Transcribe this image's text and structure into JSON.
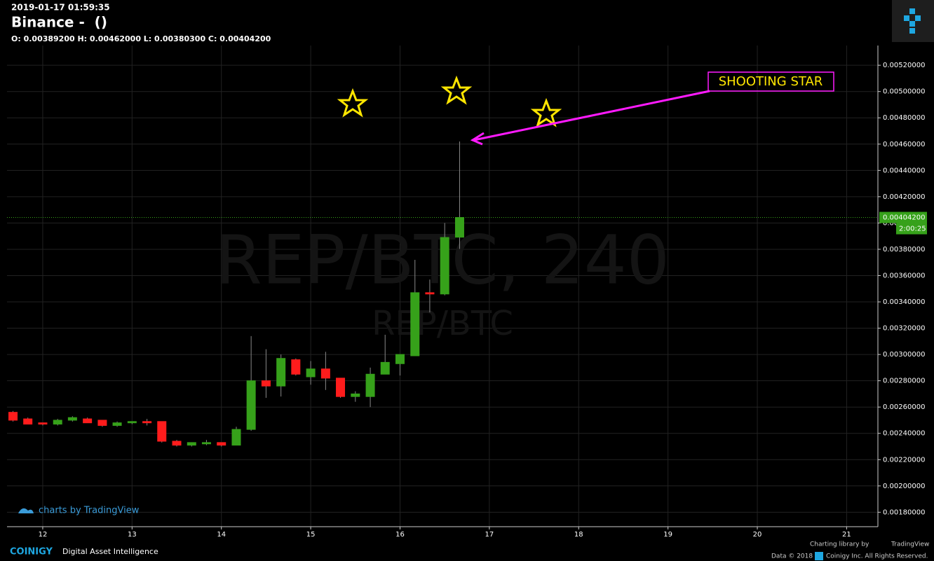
{
  "chart_data": {
    "type": "candlestick",
    "timestamp": "2019-01-17 01:59:35",
    "title": "Binance -  ()",
    "ohlc_line": "O: 0.00389200 H: 0.00462000 L: 0.00380300 C: 0.00404200",
    "watermark": "REP/BTC, 240",
    "watermark_sub": "REP/BTC",
    "annotation": "SHOOTING STAR",
    "branding": "charts by TradingView",
    "countdown": "2:00:25",
    "last_price": {
      "value": 0.004042,
      "label": "0.00404200"
    },
    "up_color": "#36a11a",
    "down_color": "#ff1c1c",
    "grid": true,
    "x": [
      11.667,
      11.833,
      12,
      12.167,
      12.333,
      12.5,
      12.667,
      12.833,
      13,
      13.167,
      13.333,
      13.5,
      13.667,
      13.833,
      14,
      14.167,
      14.333,
      14.5,
      14.667,
      14.833,
      15,
      15.167,
      15.333,
      15.5,
      15.667,
      15.833,
      16,
      16.167,
      16.333,
      16.5,
      16.667
    ],
    "open": [
      0.00256,
      0.00251,
      0.00248,
      0.00247,
      0.0025,
      0.00251,
      0.0025,
      0.00246,
      0.00248,
      0.00249,
      0.00249,
      0.00234,
      0.00231,
      0.00232,
      0.00233,
      0.00231,
      0.00243,
      0.0028,
      0.00276,
      0.00296,
      0.00283,
      0.00289,
      0.00282,
      0.00268,
      0.00268,
      0.00285,
      0.00293,
      0.00299,
      0.00347,
      0.00346,
      0.003892
    ],
    "high": [
      0.00257,
      0.00252,
      0.00248,
      0.00251,
      0.00253,
      0.00252,
      0.0025,
      0.00249,
      0.00249,
      0.00251,
      0.00249,
      0.00235,
      0.00233,
      0.00235,
      0.00233,
      0.00245,
      0.00314,
      0.00304,
      0.003,
      0.00297,
      0.00295,
      0.00302,
      0.00282,
      0.00272,
      0.0029,
      0.00315,
      0.003,
      0.00372,
      0.00357,
      0.004,
      0.00462
    ],
    "low": [
      0.00249,
      0.00247,
      0.00246,
      0.00246,
      0.00249,
      0.00248,
      0.00245,
      0.00245,
      0.00247,
      0.00246,
      0.00233,
      0.0023,
      0.0023,
      0.00231,
      0.0023,
      0.00231,
      0.00242,
      0.00267,
      0.00268,
      0.00284,
      0.00277,
      0.00273,
      0.00267,
      0.00264,
      0.0026,
      0.00285,
      0.00284,
      0.00299,
      0.00332,
      0.00345,
      0.003803
    ],
    "close": [
      0.0025,
      0.00247,
      0.00247,
      0.0025,
      0.00252,
      0.00248,
      0.00246,
      0.00248,
      0.00249,
      0.00248,
      0.00234,
      0.00231,
      0.00233,
      0.00233,
      0.00231,
      0.00243,
      0.0028,
      0.00276,
      0.00297,
      0.00285,
      0.00289,
      0.00282,
      0.00268,
      0.0027,
      0.00285,
      0.00294,
      0.003,
      0.00347,
      0.00346,
      0.00389,
      0.004042
    ],
    "xlim": [
      11.6,
      21.35
    ],
    "xticks": [
      12,
      13,
      14,
      15,
      16,
      17,
      18,
      19,
      20,
      21
    ],
    "ylim": [
      0.00169,
      0.00535
    ],
    "yticks": [
      {
        "value": 0.0018,
        "label": "0.00180000"
      },
      {
        "value": 0.002,
        "label": "0.00200000"
      },
      {
        "value": 0.0022,
        "label": "0.00220000"
      },
      {
        "value": 0.0024,
        "label": "0.00240000"
      },
      {
        "value": 0.0026,
        "label": "0.00260000"
      },
      {
        "value": 0.0028,
        "label": "0.00280000"
      },
      {
        "value": 0.003,
        "label": "0.00300000"
      },
      {
        "value": 0.0032,
        "label": "0.00320000"
      },
      {
        "value": 0.0034,
        "label": "0.00340000"
      },
      {
        "value": 0.0036,
        "label": "0.00360000"
      },
      {
        "value": 0.0038,
        "label": "0.00380000"
      },
      {
        "value": 0.004,
        "label": "0.00400000"
      },
      {
        "value": 0.0042,
        "label": "0.00420000"
      },
      {
        "value": 0.0044,
        "label": "0.00440000"
      },
      {
        "value": 0.0046,
        "label": "0.00460000"
      },
      {
        "value": 0.0048,
        "label": "0.00480000"
      },
      {
        "value": 0.005,
        "label": "0.00500000"
      },
      {
        "value": 0.0052,
        "label": "0.00520000"
      }
    ]
  },
  "footer": {
    "brand": "COINIGY",
    "tagline": "Digital Asset Intelligence",
    "library": "Charting library by",
    "library_name": "TradingView",
    "data": "Data © 2018",
    "rights": "Coinigy Inc. All Rights Reserved."
  }
}
